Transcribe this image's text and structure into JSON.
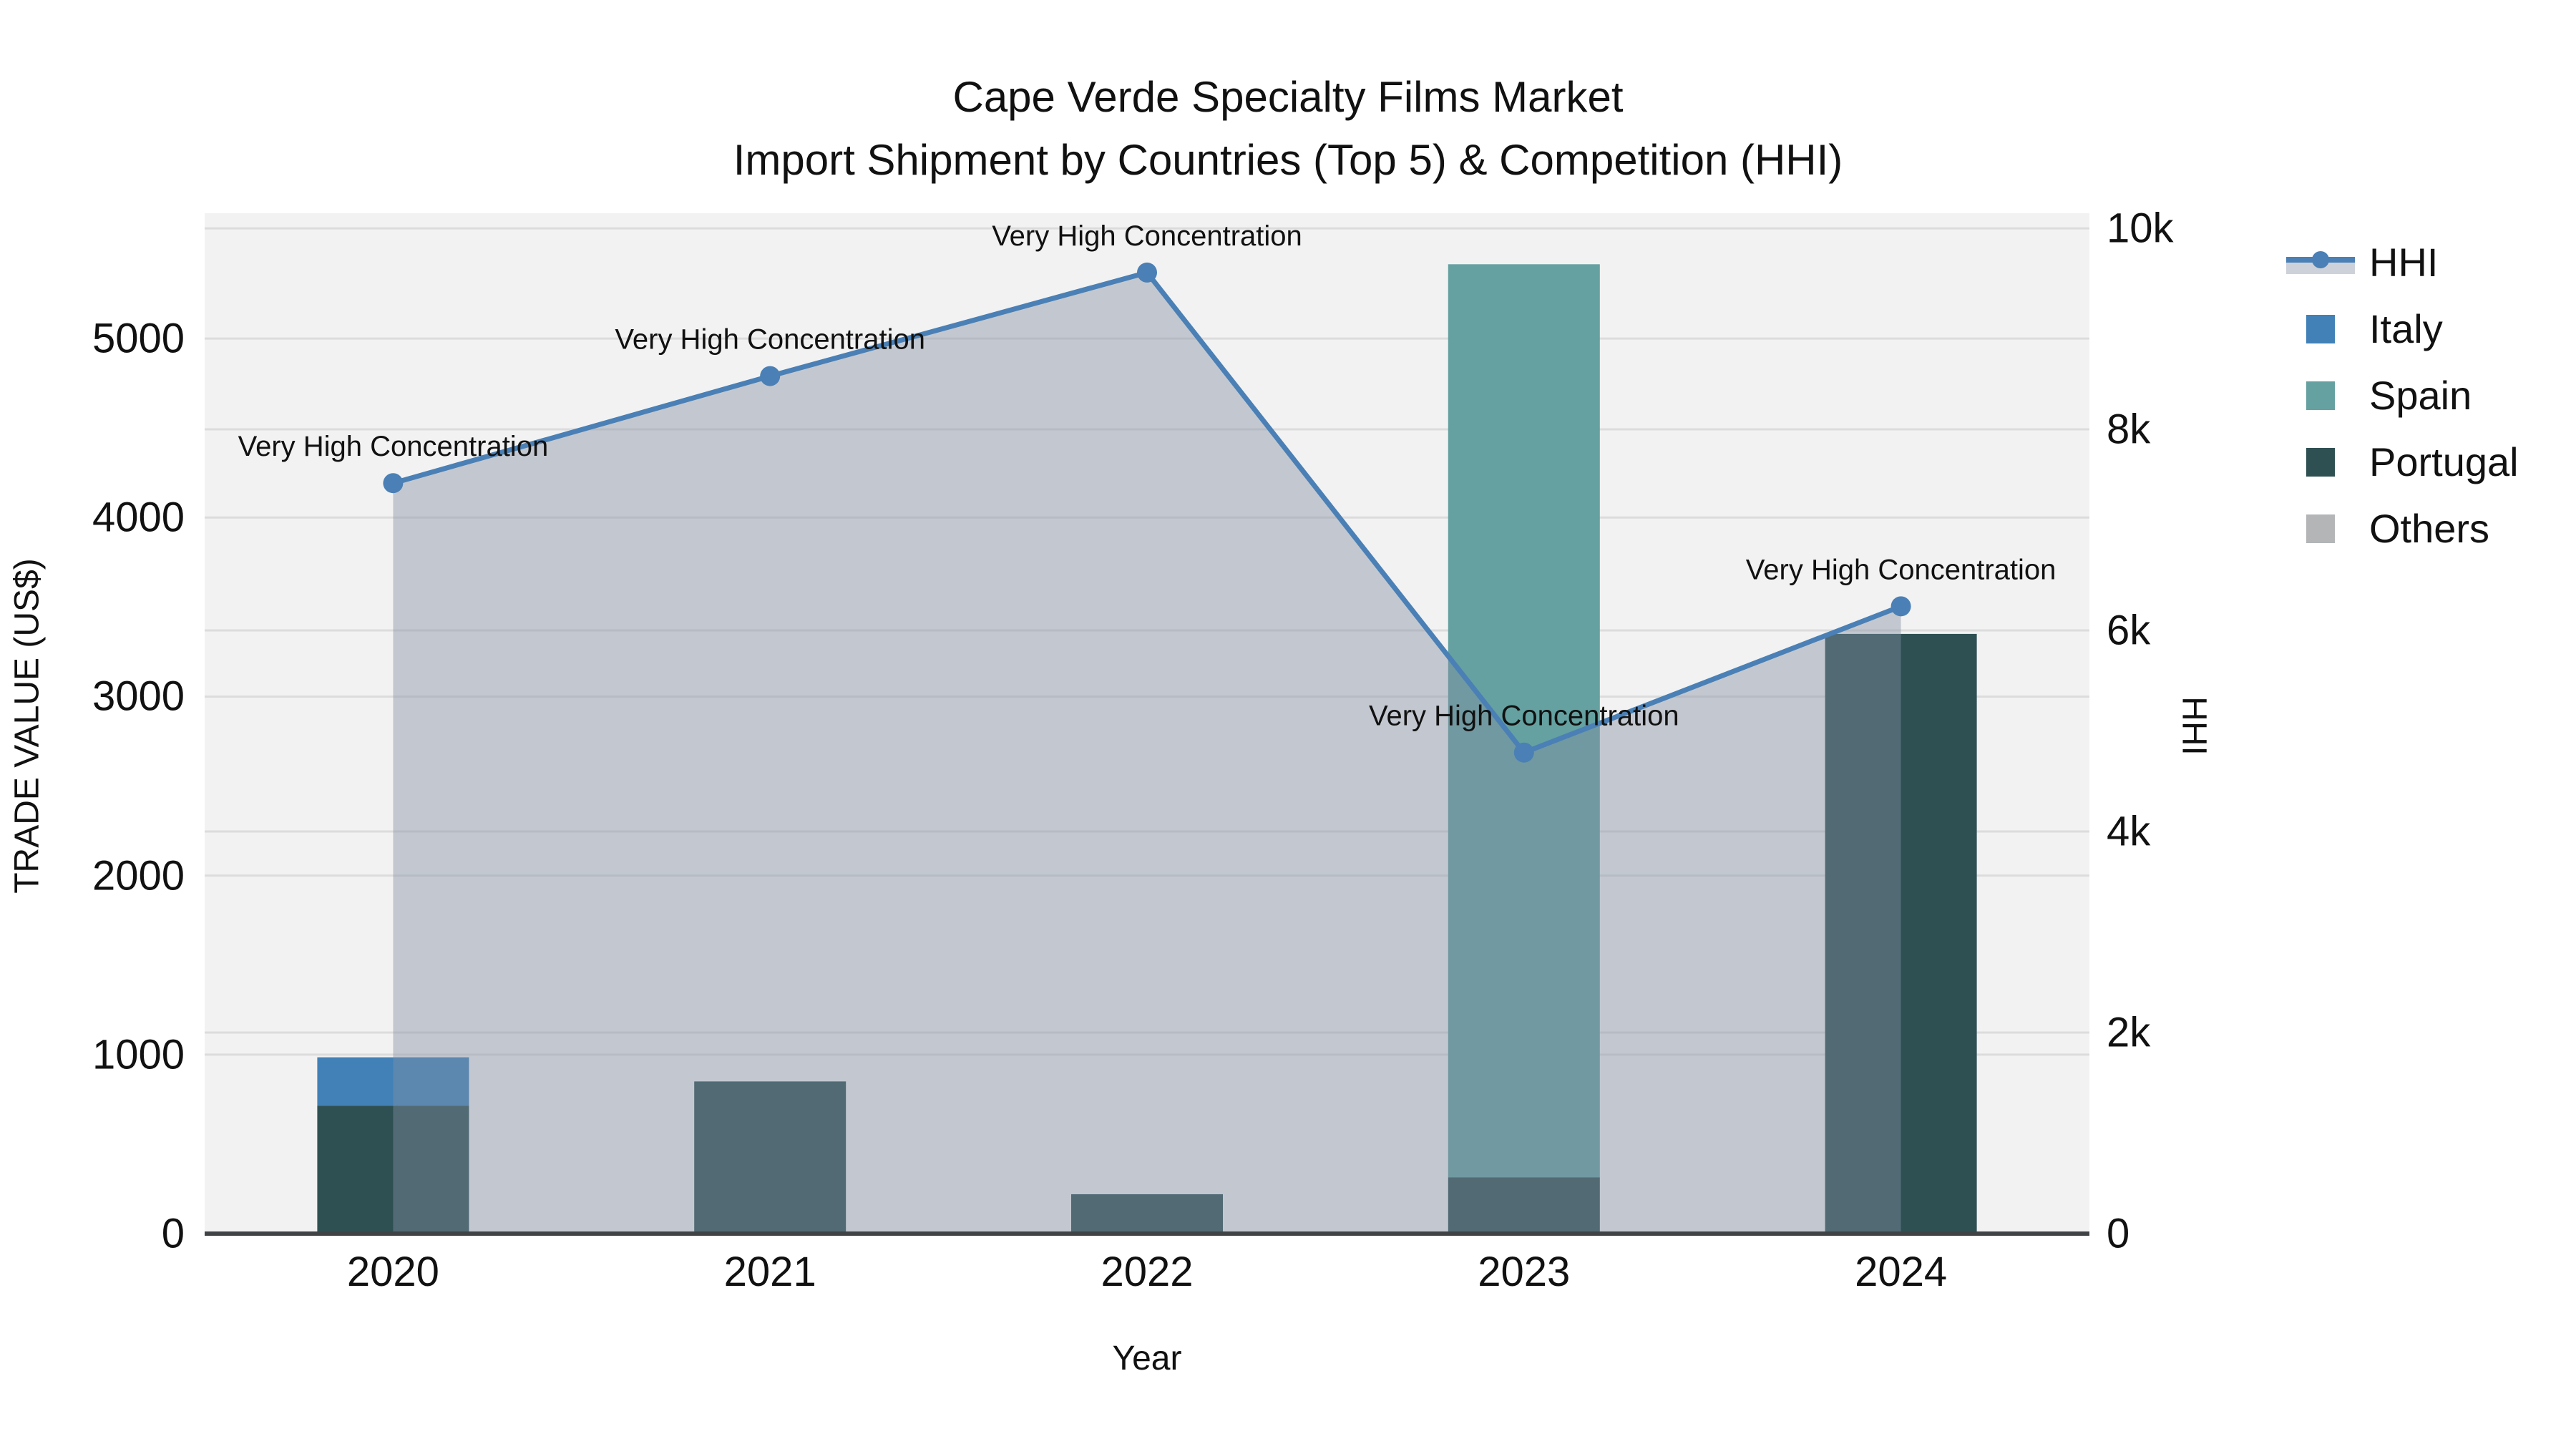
{
  "title": {
    "line1": "Cape Verde Specialty Films Market",
    "line2": "Import Shipment by Countries (Top 5) & Competition (HHI)"
  },
  "axes": {
    "x": {
      "title": "Year",
      "ticks": [
        "2020",
        "2021",
        "2022",
        "2023",
        "2024"
      ]
    },
    "y_left": {
      "title": "TRADE VALUE (US$)",
      "tick_labels": [
        "0",
        "1000",
        "2000",
        "3000",
        "4000",
        "5000"
      ],
      "tick_values": [
        0,
        1000,
        2000,
        3000,
        4000,
        5000
      ],
      "range": [
        0,
        5700
      ]
    },
    "y_right": {
      "title": "HHI",
      "tick_labels": [
        "0",
        "2k",
        "4k",
        "6k",
        "8k",
        "10k"
      ],
      "tick_values": [
        0,
        2000,
        4000,
        6000,
        8000,
        10000
      ],
      "range": [
        0,
        10150
      ]
    }
  },
  "legend": {
    "items": [
      {
        "label": "HHI",
        "type": "line",
        "color": "#4a80b5",
        "band": "#cdd2da"
      },
      {
        "label": "Italy",
        "type": "square",
        "color": "#4181b8"
      },
      {
        "label": "Spain",
        "type": "square",
        "color": "#65a1a1"
      },
      {
        "label": "Portugal",
        "type": "square",
        "color": "#2e5053"
      },
      {
        "label": "Others",
        "type": "square",
        "color": "#b3b5b7"
      }
    ]
  },
  "chart_data": {
    "type": "combo",
    "bar_mode": "stacked",
    "categories": [
      "2020",
      "2021",
      "2022",
      "2023",
      "2024"
    ],
    "stack_order": [
      "Portugal",
      "Spain",
      "Italy",
      "Others"
    ],
    "series": [
      {
        "name": "Italy",
        "type": "bar",
        "axis": "left",
        "color": "#4181b8",
        "values": [
          270,
          0,
          0,
          0,
          0
        ]
      },
      {
        "name": "Spain",
        "type": "bar",
        "axis": "left",
        "color": "#65a1a1",
        "values": [
          0,
          0,
          0,
          5100,
          0
        ]
      },
      {
        "name": "Portugal",
        "type": "bar",
        "axis": "left",
        "color": "#2e5053",
        "values": [
          715,
          850,
          220,
          315,
          3350
        ]
      },
      {
        "name": "Others",
        "type": "bar",
        "axis": "left",
        "color": "#b3b5b7",
        "values": [
          0,
          0,
          0,
          0,
          0
        ]
      }
    ],
    "hhi": {
      "name": "HHI",
      "type": "line+area+markers",
      "axis": "right",
      "color": "#4a80b5",
      "area_fill": "rgba(130,142,162,0.42)",
      "values": [
        7465,
        8530,
        9560,
        4785,
        6240
      ]
    },
    "annotations": [
      {
        "category": "2020",
        "text": "Very High Concentration"
      },
      {
        "category": "2021",
        "text": "Very High Concentration"
      },
      {
        "category": "2022",
        "text": "Very High Concentration"
      },
      {
        "category": "2023",
        "text": "Very High Concentration"
      },
      {
        "category": "2024",
        "text": "Very High Concentration"
      }
    ],
    "title": "Cape Verde Specialty Films Market — Import Shipment by Countries (Top 5) & Competition (HHI)",
    "xlabel": "Year",
    "ylabel_left": "TRADE VALUE (US$)",
    "ylabel_right": "HHI",
    "grid": true,
    "legend_position": "right"
  },
  "colors": {
    "plot_bg": "#f2f2f2",
    "gridline": "#dcdcdc",
    "axis_line": "#3f4346",
    "text": "#111111"
  }
}
